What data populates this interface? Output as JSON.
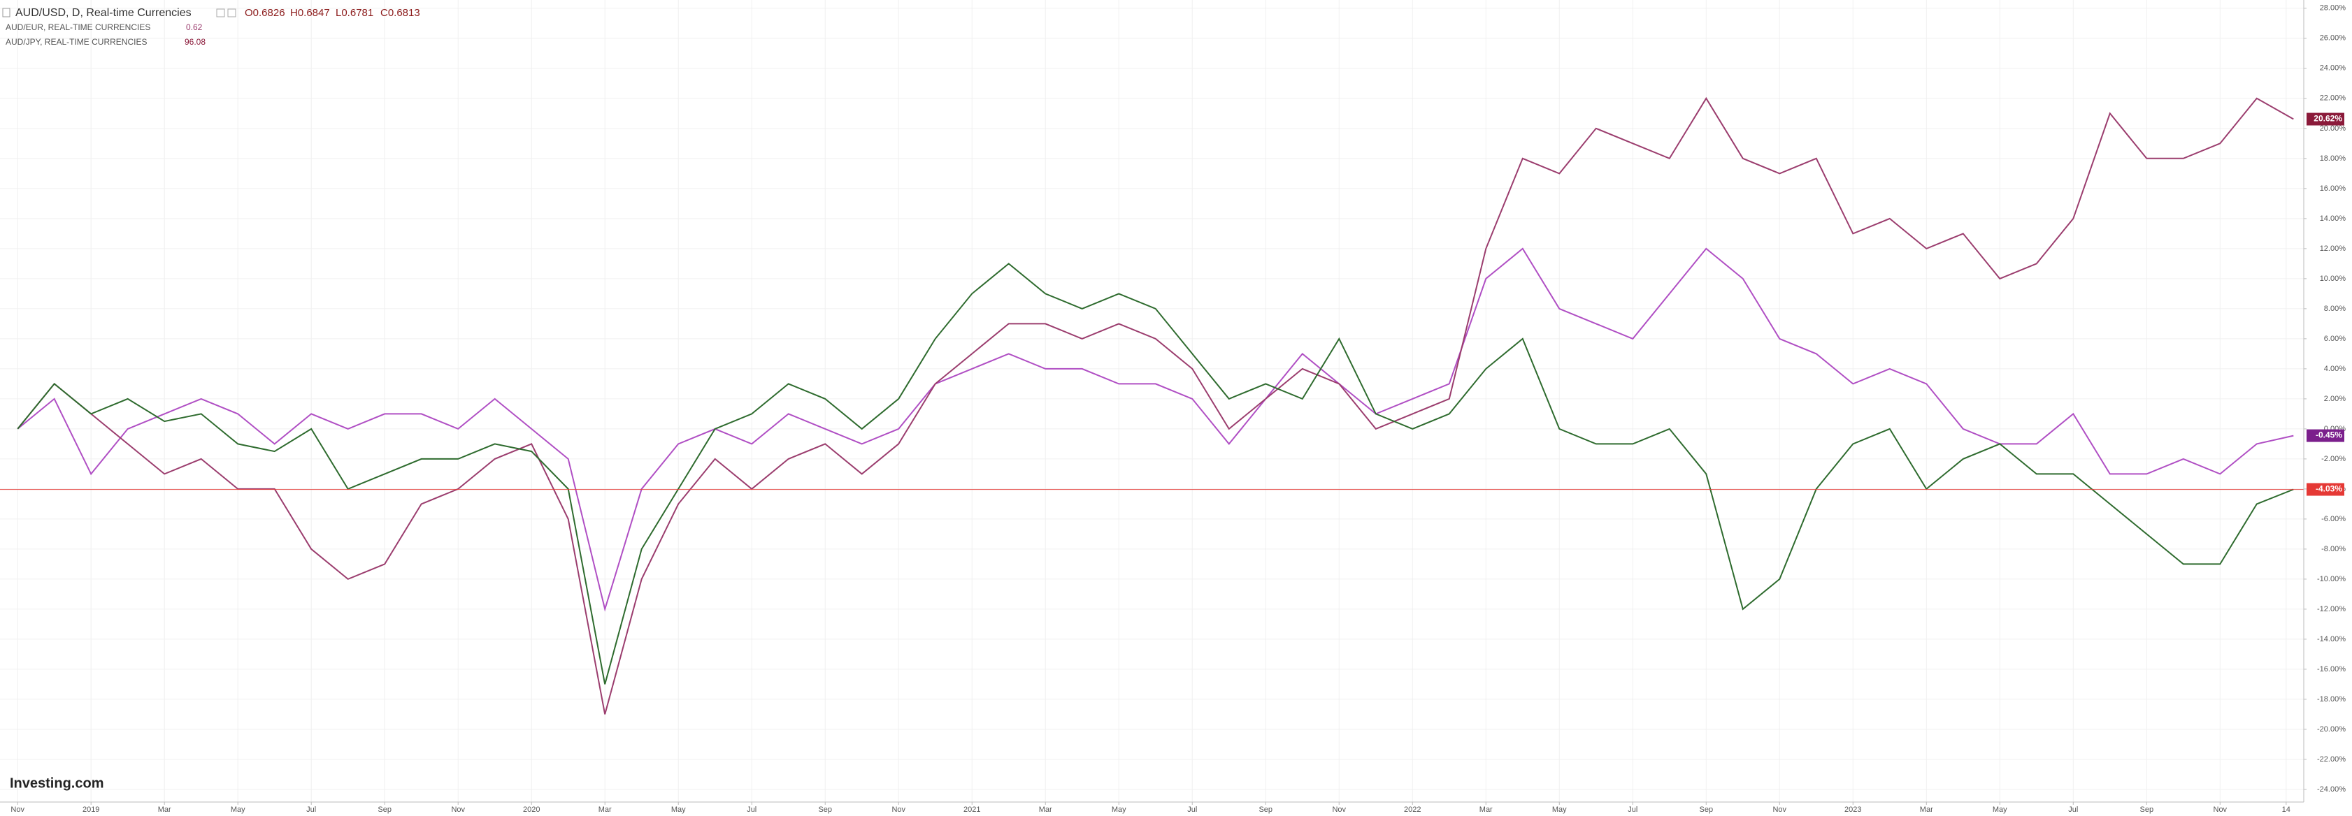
{
  "chart_data": {
    "type": "line",
    "logo": "Investing.com",
    "header": {
      "title": "AUD/USD, D, Real-time Currencies",
      "ohlc": [
        "O0.6826",
        "H0.6847",
        "L0.6781",
        "C0.6813"
      ],
      "sub_legend": [
        {
          "label": "AUD/EUR, REAL-TIME CURRENCIES",
          "value": "0.62"
        },
        {
          "label": "AUD/JPY, REAL-TIME CURRENCIES",
          "value": "96.08"
        }
      ]
    },
    "x": [
      0,
      1,
      2,
      3,
      4,
      5,
      6,
      7,
      8,
      9,
      10,
      11,
      12,
      13,
      14,
      15,
      16,
      17,
      18,
      19,
      20,
      21,
      22,
      23,
      24,
      25,
      26,
      27,
      28,
      29,
      30,
      31,
      32,
      33,
      34,
      35,
      36,
      37,
      38,
      39,
      40,
      41,
      42,
      43,
      44,
      45,
      46,
      47,
      48,
      49,
      50,
      51,
      52,
      53,
      54,
      55,
      56,
      57,
      58,
      59,
      60,
      61,
      62
    ],
    "xlim": [
      -0.48,
      62.28
    ],
    "xticks": [
      {
        "value": 0,
        "label": "Nov"
      },
      {
        "value": 2,
        "label": "2019"
      },
      {
        "value": 4,
        "label": "Mar"
      },
      {
        "value": 6,
        "label": "May"
      },
      {
        "value": 8,
        "label": "Jul"
      },
      {
        "value": 10,
        "label": "Sep"
      },
      {
        "value": 12,
        "label": "Nov"
      },
      {
        "value": 14,
        "label": "2020"
      },
      {
        "value": 16,
        "label": "Mar"
      },
      {
        "value": 18,
        "label": "May"
      },
      {
        "value": 20,
        "label": "Jul"
      },
      {
        "value": 22,
        "label": "Sep"
      },
      {
        "value": 24,
        "label": "Nov"
      },
      {
        "value": 26,
        "label": "2021"
      },
      {
        "value": 28,
        "label": "Mar"
      },
      {
        "value": 30,
        "label": "May"
      },
      {
        "value": 32,
        "label": "Jul"
      },
      {
        "value": 34,
        "label": "Sep"
      },
      {
        "value": 36,
        "label": "Nov"
      },
      {
        "value": 38,
        "label": "2022"
      },
      {
        "value": 40,
        "label": "Mar"
      },
      {
        "value": 42,
        "label": "May"
      },
      {
        "value": 44,
        "label": "Jul"
      },
      {
        "value": 46,
        "label": "Sep"
      },
      {
        "value": 48,
        "label": "Nov"
      },
      {
        "value": 50,
        "label": "2023"
      },
      {
        "value": 52,
        "label": "Mar"
      },
      {
        "value": 54,
        "label": "May"
      },
      {
        "value": 56,
        "label": "Jul"
      },
      {
        "value": 58,
        "label": "Sep"
      },
      {
        "value": 60,
        "label": "Nov"
      },
      {
        "value": 61.8,
        "label": "14"
      }
    ],
    "ylim": [
      -24.7,
      28.55
    ],
    "yticks": [
      {
        "value": 28,
        "label": "28.00%"
      },
      {
        "value": 26,
        "label": "26.00%"
      },
      {
        "value": 24,
        "label": "24.00%"
      },
      {
        "value": 22,
        "label": "22.00%"
      },
      {
        "value": 20,
        "label": "20.00%"
      },
      {
        "value": 18,
        "label": "18.00%"
      },
      {
        "value": 16,
        "label": "16.00%"
      },
      {
        "value": 14,
        "label": "14.00%"
      },
      {
        "value": 12,
        "label": "12.00%"
      },
      {
        "value": 10,
        "label": "10.00%"
      },
      {
        "value": 8,
        "label": "8.00%"
      },
      {
        "value": 6,
        "label": "6.00%"
      },
      {
        "value": 4,
        "label": "4.00%"
      },
      {
        "value": 2,
        "label": "2.00%"
      },
      {
        "value": 0,
        "label": "0.00%"
      },
      {
        "value": -2,
        "label": "-2.00%"
      },
      {
        "value": -4,
        "label": "-4.00%"
      },
      {
        "value": -6,
        "label": "-6.00%"
      },
      {
        "value": -8,
        "label": "-8.00%"
      },
      {
        "value": -10,
        "label": "-10.00%"
      },
      {
        "value": -12,
        "label": "-12.00%"
      },
      {
        "value": -14,
        "label": "-14.00%"
      },
      {
        "value": -16,
        "label": "-16.00%"
      },
      {
        "value": -18,
        "label": "-18.00%"
      },
      {
        "value": -20,
        "label": "-20.00%"
      },
      {
        "value": -22,
        "label": "-22.00%"
      },
      {
        "value": -24,
        "label": "-24.00%"
      }
    ],
    "grid": true,
    "series": [
      {
        "name": "AUD/USD, D, Real-time Currencies",
        "color": "#2e6b2e",
        "label_color": "#e53935",
        "last_line": true,
        "last_label": "-4.03%",
        "values": [
          0,
          3,
          1,
          2,
          0.5,
          1,
          -1,
          -1.5,
          0,
          -4,
          -3,
          -2,
          -2,
          -1,
          -1.5,
          -4,
          -17,
          -8,
          -4,
          0,
          1,
          3,
          2,
          0,
          2,
          6,
          9,
          11,
          9,
          8,
          9,
          8,
          5,
          2,
          3,
          2,
          6,
          1,
          0,
          1,
          4,
          6,
          0,
          -1,
          -1,
          0,
          -3,
          -12,
          -10,
          -4,
          -1,
          0,
          -4,
          -2,
          -1,
          -3,
          -3,
          -5,
          -7,
          -9,
          -9,
          -5,
          -4.03
        ]
      },
      {
        "name": "AUD/EUR, REAL-TIME CURRENCIES",
        "color": "#9b3d6e",
        "label_color": "#8b1a3a",
        "last_line": false,
        "last_label": "20.62%",
        "values": [
          0,
          3,
          1,
          -1,
          -3,
          -2,
          -4,
          -4,
          -8,
          -10,
          -9,
          -5,
          -4,
          -2,
          -1,
          -6,
          -19,
          -10,
          -5,
          -2,
          -4,
          -2,
          -1,
          -3,
          -1,
          3,
          5,
          7,
          7,
          6,
          7,
          6,
          4,
          0,
          2,
          4,
          3,
          0,
          1,
          2,
          12,
          18,
          17,
          20,
          19,
          18,
          22,
          18,
          17,
          18,
          13,
          14,
          12,
          13,
          10,
          11,
          14,
          21,
          18,
          18,
          19,
          22,
          20.62
        ]
      },
      {
        "name": "AUD/JPY, REAL-TIME CURRENCIES",
        "color": "#b04fc4",
        "label_color": "#7b1f8c",
        "last_line": false,
        "last_label": "-0.45%",
        "values": [
          0,
          2,
          -3,
          0,
          1,
          2,
          1,
          -1,
          1,
          0,
          1,
          1,
          0,
          2,
          0,
          -2,
          -12,
          -4,
          -1,
          0,
          -1,
          1,
          0,
          -1,
          0,
          3,
          4,
          5,
          4,
          4,
          3,
          3,
          2,
          -1,
          2,
          5,
          3,
          1,
          2,
          3,
          10,
          12,
          8,
          7,
          6,
          9,
          12,
          10,
          6,
          5,
          3,
          4,
          3,
          0,
          -1,
          -1,
          1,
          -3,
          -3,
          -2,
          -3,
          -1,
          -0.45
        ]
      }
    ]
  }
}
